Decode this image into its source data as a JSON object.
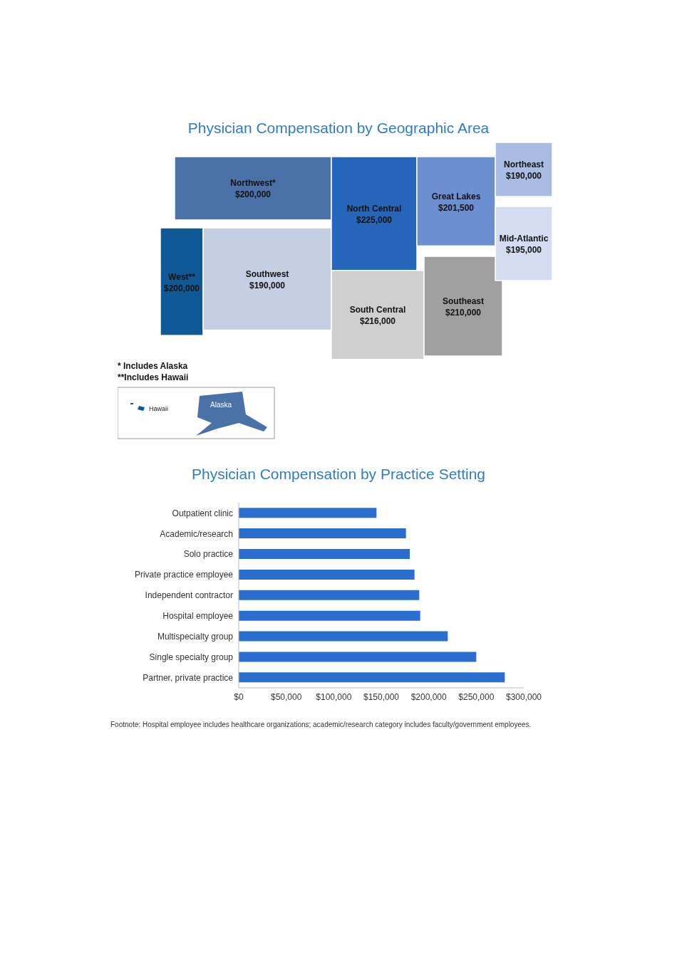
{
  "chart_data": [
    {
      "type": "other",
      "title": "Physician Compensation by Geographic Area",
      "categories": [
        "Northwest*",
        "West**",
        "Southwest",
        "North Central",
        "South Central",
        "Great Lakes",
        "Southeast",
        "Northeast",
        "Mid-Atlantic"
      ],
      "values": [
        200000,
        200000,
        190000,
        225000,
        216000,
        201500,
        210000,
        190000,
        195000
      ],
      "value_labels": [
        "$200,000",
        "$200,000",
        "$190,000",
        "$225,000",
        "$216,000",
        "$201,500",
        "$210,000",
        "$190,000",
        "$195,000"
      ],
      "colors": [
        "#4a72a8",
        "#0f5a96",
        "#c5cfe3",
        "#2566bb",
        "#cfcfcf",
        "#6c8fcf",
        "#a0a0a0",
        "#a9bce3",
        "#d3dcf0"
      ],
      "annotations": [
        "* Includes Alaska",
        "**Includes Hawaii",
        "Hawaii",
        "Alaska"
      ]
    },
    {
      "type": "bar",
      "orientation": "horizontal",
      "title": "Physician Compensation by Practice Setting",
      "categories": [
        "Outpatient clinic",
        "Academic/research",
        "Solo practice",
        "Private practice employee",
        "Independent contractor",
        "Hospital employee",
        "Multispecialty group",
        "Single specialty group",
        "Partner, private practice"
      ],
      "values": [
        145000,
        176000,
        180000,
        185000,
        190000,
        191000,
        220000,
        250000,
        280000
      ],
      "color": "#2a6fd0",
      "xlim": [
        0,
        300000
      ],
      "xticks": [
        {
          "value": 0,
          "label": "$0"
        },
        {
          "value": 50000,
          "label": "$50,000"
        },
        {
          "value": 100000,
          "label": "$100,000"
        },
        {
          "value": 150000,
          "label": "$150,000"
        },
        {
          "value": 200000,
          "label": "$200,000"
        },
        {
          "value": 250000,
          "label": "$250,000"
        },
        {
          "value": 300000,
          "label": "$300,000"
        }
      ],
      "grid": false,
      "annotations": [
        "Footnote: Hospital employee includes healthcare organizations; academic/research category includes faculty/government employees."
      ]
    }
  ]
}
